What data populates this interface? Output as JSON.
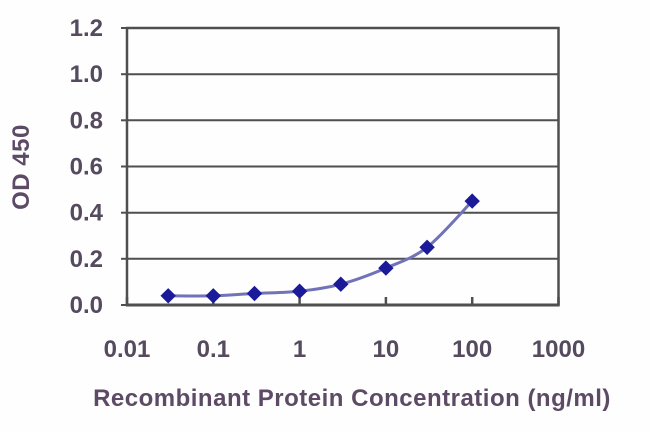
{
  "chart_data": {
    "type": "line",
    "title": "",
    "xlabel": "Recombinant Protein Concentration (ng/ml)",
    "ylabel": "OD 450",
    "x_scale": "log",
    "x": [
      0.03,
      0.1,
      0.3,
      1,
      3,
      10,
      30,
      100
    ],
    "values": [
      0.04,
      0.04,
      0.05,
      0.06,
      0.09,
      0.16,
      0.25,
      0.45
    ],
    "xlim": [
      0.01,
      1000
    ],
    "ylim": [
      0,
      1.2
    ],
    "x_tick_values": [
      0.01,
      0.1,
      1,
      10,
      100,
      1000
    ],
    "x_tick_labels": [
      "0.01",
      "0.1",
      "1",
      "10",
      "100",
      "1000"
    ],
    "y_tick_values": [
      0,
      0.2,
      0.4,
      0.6,
      0.8,
      1.0,
      1.2
    ],
    "y_tick_labels": [
      "0.0",
      "0.2",
      "0.4",
      "0.6",
      "0.8",
      "1.0",
      "1.2"
    ],
    "grid": "horizontal",
    "legend": "none",
    "marker": "diamond",
    "line_smooth": true
  },
  "colors": {
    "background": "#fefefe",
    "line": "#7272b8",
    "marker": "#1b1b9a",
    "grid": "#4f4f4f",
    "frame": "#4f4f4f",
    "tick_text": "#554a5e",
    "title_text": "#5d4b66"
  }
}
